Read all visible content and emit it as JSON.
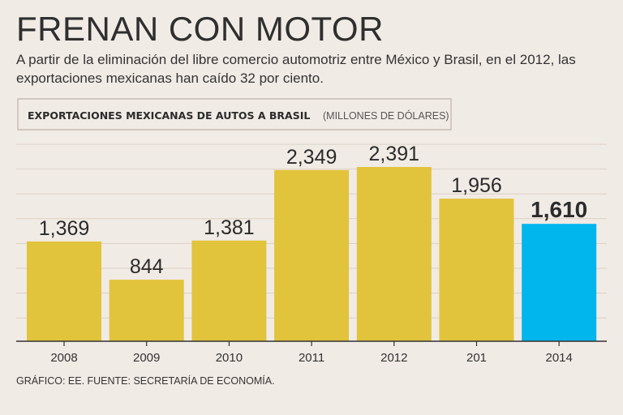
{
  "header": {
    "title": "FRENAN CON MOTOR",
    "subtitle": "A partir de la eliminación del libre comercio automotriz entre México y Brasil, en el 2012, las exportaciones mexicanas han caído 32 por ciento."
  },
  "footer": {
    "source": "GRÁFICO: EE. FUENTE: SECRETARÍA DE ECONOMÍA."
  },
  "colors": {
    "bar": "#e2c33c",
    "highlight": "#00b6ec",
    "grid": "#dccfc4",
    "background": "#f1ebe5"
  },
  "chart_data": {
    "type": "bar",
    "title": "EXPORTACIONES MEXICANAS DE AUTOS A BRASIL",
    "units": "(MILLONES DE DÓLARES)",
    "categories": [
      "2008",
      "2009",
      "2010",
      "2011",
      "2012",
      "201",
      "2014"
    ],
    "values": [
      1369,
      844,
      1381,
      2349,
      2391,
      1956,
      1610
    ],
    "value_labels": [
      "1,369",
      "844",
      "1,381",
      "2,349",
      "2,391",
      "1,956",
      "1,610"
    ],
    "highlight_index": 6,
    "xlabel": "",
    "ylabel": "",
    "ylim": [
      0,
      2391
    ],
    "grid": true
  }
}
